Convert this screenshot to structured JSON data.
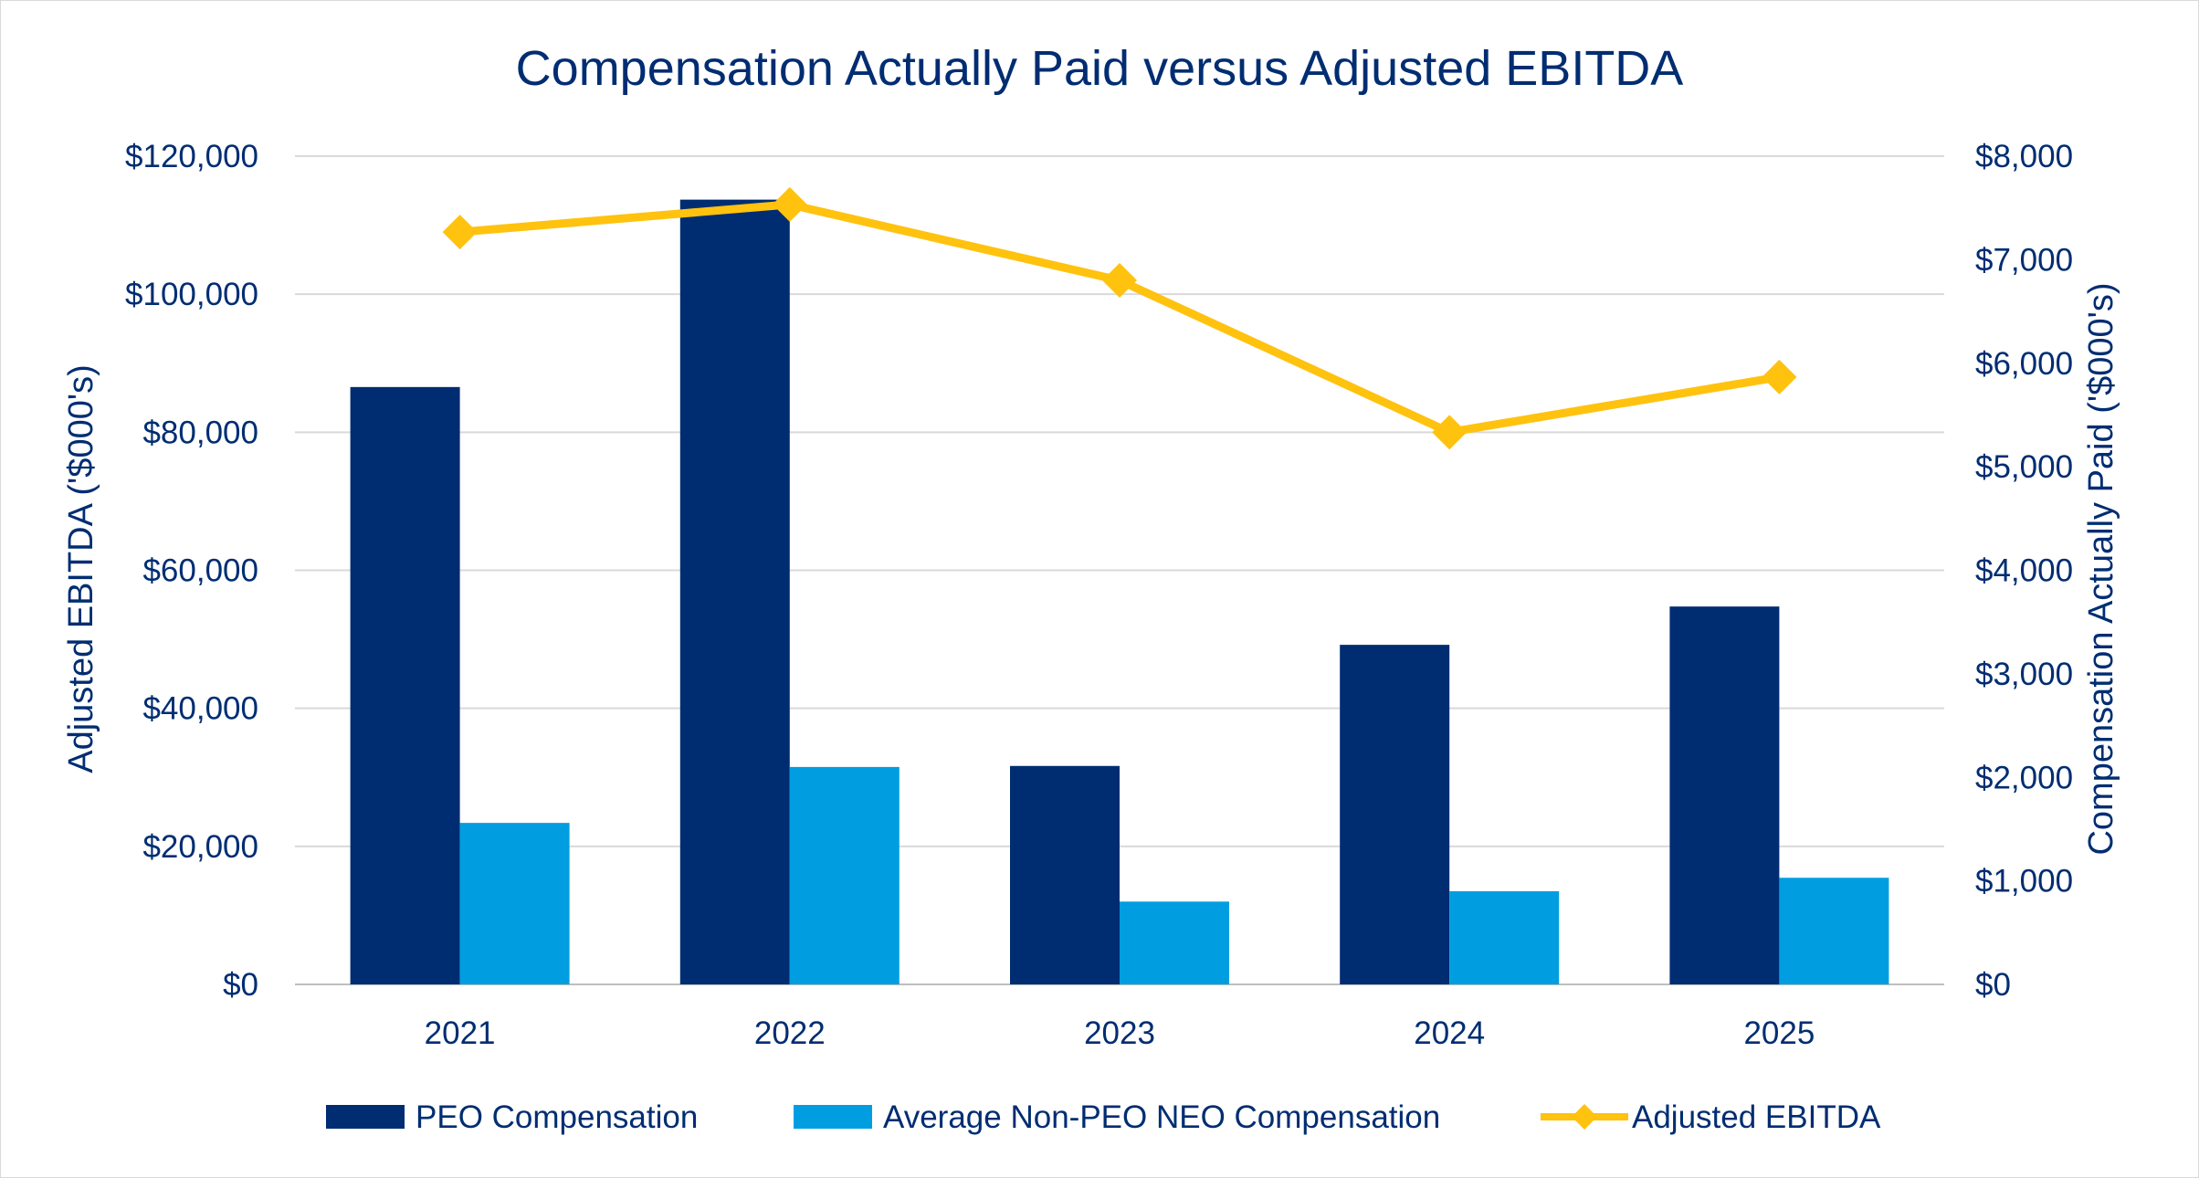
{
  "chart_data": {
    "type": "bar",
    "title": "Compensation Actually Paid versus Adjusted EBITDA",
    "categories": [
      "2021",
      "2022",
      "2023",
      "2024",
      "2025"
    ],
    "series": [
      {
        "name": "PEO Compensation",
        "kind": "bar",
        "axis": "right",
        "color": "#002d72",
        "values": [
          5770,
          7580,
          2110,
          3280,
          3650
        ]
      },
      {
        "name": "Average Non-PEO NEO Compensation",
        "kind": "bar",
        "axis": "right",
        "color": "#009ee0",
        "values": [
          1560,
          2100,
          800,
          900,
          1030
        ]
      },
      {
        "name": "Adjusted EBITDA",
        "kind": "line",
        "marker": "diamond",
        "axis": "left",
        "color": "#ffc20e",
        "values": [
          109000,
          113000,
          102000,
          80000,
          88000
        ]
      }
    ],
    "y_left": {
      "label": "Adjusted EBITDA ('$000's)",
      "range": [
        0,
        120000
      ],
      "ticks": [
        "$0",
        "$20,000",
        "$40,000",
        "$60,000",
        "$80,000",
        "$100,000",
        "$120,000"
      ]
    },
    "y_right": {
      "label": "Compensation Actually Paid ('$000's)",
      "range": [
        0,
        8000
      ],
      "ticks": [
        "$0",
        "$1,000",
        "$2,000",
        "$3,000",
        "$4,000",
        "$5,000",
        "$6,000",
        "$7,000",
        "$8,000"
      ]
    },
    "grid": true,
    "legend_position": "bottom"
  }
}
